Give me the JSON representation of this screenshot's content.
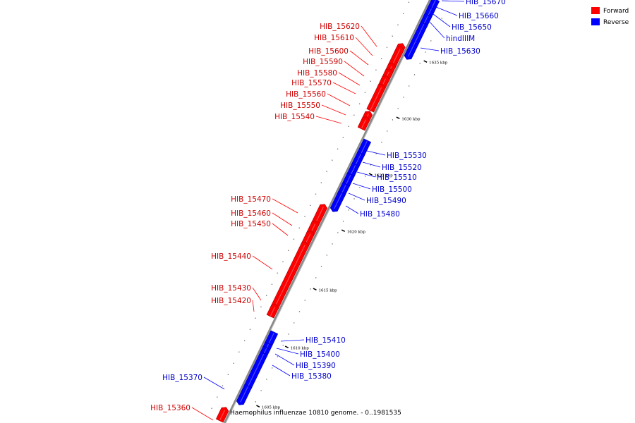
{
  "caption": "Haemophilus influenzae 10810 genome. - 0..1981535",
  "legend": [
    {
      "label": "Forward",
      "color": "#ff0000"
    },
    {
      "label": "Reverse",
      "color": "#0000ff"
    }
  ],
  "colors": {
    "forward": "#ff0000",
    "reverse": "#0000ff",
    "forward_label": "#cc0000",
    "reverse_label": "#0000cc",
    "backbone": "#888888"
  },
  "ticks": [
    "1635 kbp",
    "1630 kbp",
    "1625 kbp",
    "1620 kbp",
    "1615 kbp",
    "1610 kbp",
    "1605 kbp"
  ],
  "forward_genes": [
    "HIB_15620",
    "HIB_15610",
    "HIB_15600",
    "HIB_15590",
    "HIB_15580",
    "HIB_15570",
    "HIB_15560",
    "HIB_15550",
    "HIB_15540",
    "HIB_15470",
    "HIB_15460",
    "HIB_15450",
    "HIB_15440",
    "HIB_15430",
    "HIB_15420",
    "HIB_15360"
  ],
  "reverse_genes": [
    "HIB_15670",
    "HIB_15660",
    "HIB_15650",
    "hindIIIM",
    "HIB_15630",
    "HIB_15530",
    "HIB_15520",
    "HIB_15510",
    "HIB_15500",
    "HIB_15490",
    "HIB_15480",
    "HIB_15410",
    "HIB_15400",
    "HIB_15390",
    "HIB_15380",
    "HIB_15370"
  ]
}
